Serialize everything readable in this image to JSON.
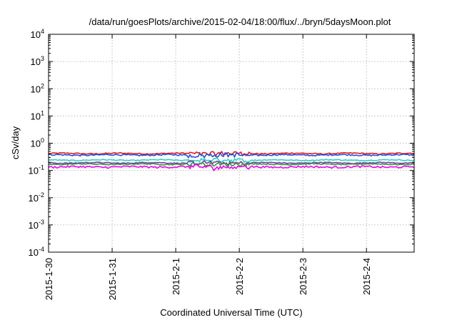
{
  "chart_data": {
    "type": "line",
    "title": "/data/run/goesPlots/archive/2015-02-04/18:00/flux/../bryn/5daysMoon.plot",
    "xlabel": "Coordinated Universal Time (UTC)",
    "ylabel": "cSv/day",
    "yscale": "log",
    "ylim": [
      0.0001,
      10000
    ],
    "y_ticks": [
      {
        "base": "10",
        "exp": "-4",
        "value": 0.0001
      },
      {
        "base": "10",
        "exp": "-3",
        "value": 0.001
      },
      {
        "base": "10",
        "exp": "-2",
        "value": 0.01
      },
      {
        "base": "10",
        "exp": "-1",
        "value": 0.1
      },
      {
        "base": "10",
        "exp": "0",
        "value": 1
      },
      {
        "base": "10",
        "exp": "1",
        "value": 10
      },
      {
        "base": "10",
        "exp": "2",
        "value": 100
      },
      {
        "base": "10",
        "exp": "3",
        "value": 1000
      },
      {
        "base": "10",
        "exp": "4",
        "value": 10000
      }
    ],
    "xlim": [
      "2015-01-30T00:00",
      "2015-02-04T18:00"
    ],
    "x_ticks": [
      "2015-1-30",
      "2015-1-31",
      "2015-2-1",
      "2015-2-2",
      "2015-2-3",
      "2015-2-4"
    ],
    "grid": true,
    "series": [
      {
        "color": "#e41a1c",
        "level": 0.42,
        "noise": 0.05
      },
      {
        "color": "#1f4fe0",
        "level": 0.37,
        "noise": 0.06
      },
      {
        "color": "#2bd0c8",
        "level": 0.24,
        "noise": 0.04
      },
      {
        "color": "#7b3aa0",
        "level": 0.19,
        "noise": 0.04
      },
      {
        "color": "#2a9a3a",
        "level": 0.17,
        "noise": 0.04
      },
      {
        "color": "#ee00ee",
        "level": 0.135,
        "noise": 0.08
      }
    ]
  }
}
